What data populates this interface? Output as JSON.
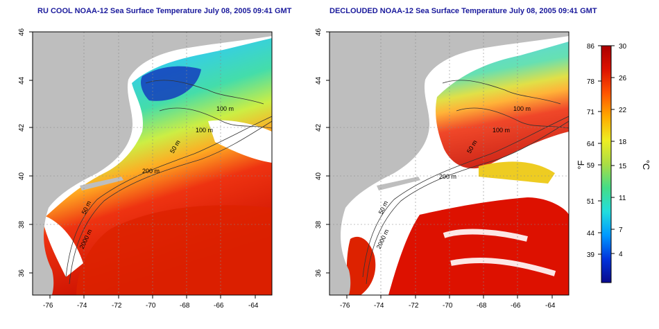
{
  "titles": {
    "left": "RU COOL NOAA-12 Sea Surface Temperature July 08, 2005 09:41 GMT",
    "right": "DECLOUDED NOAA-12 Sea Surface Temperature July 08, 2005 09:41 GMT"
  },
  "map": {
    "lat_ticks": [
      "46",
      "44",
      "42",
      "40",
      "38",
      "36"
    ],
    "lon_ticks": [
      "-76",
      "-74",
      "-72",
      "-70",
      "-68",
      "-66",
      "-64"
    ],
    "depth_labels": [
      "100 m",
      "100 m",
      "50 m",
      "200 m",
      "50 m",
      "2000 m"
    ]
  },
  "colorbar": {
    "fahrenheit": [
      "86",
      "78",
      "71",
      "64",
      "59",
      "51",
      "44",
      "39"
    ],
    "celsius": [
      "30",
      "26",
      "22",
      "18",
      "15",
      "11",
      "7",
      "4"
    ],
    "unit_f": "°F",
    "unit_c": "°C",
    "colors": [
      "#0a0a8c",
      "#0033dd",
      "#0099ff",
      "#22dddd",
      "#44dd88",
      "#aadd44",
      "#eeee22",
      "#ffaa00",
      "#ff5500",
      "#dd1100",
      "#aa0000"
    ]
  }
}
